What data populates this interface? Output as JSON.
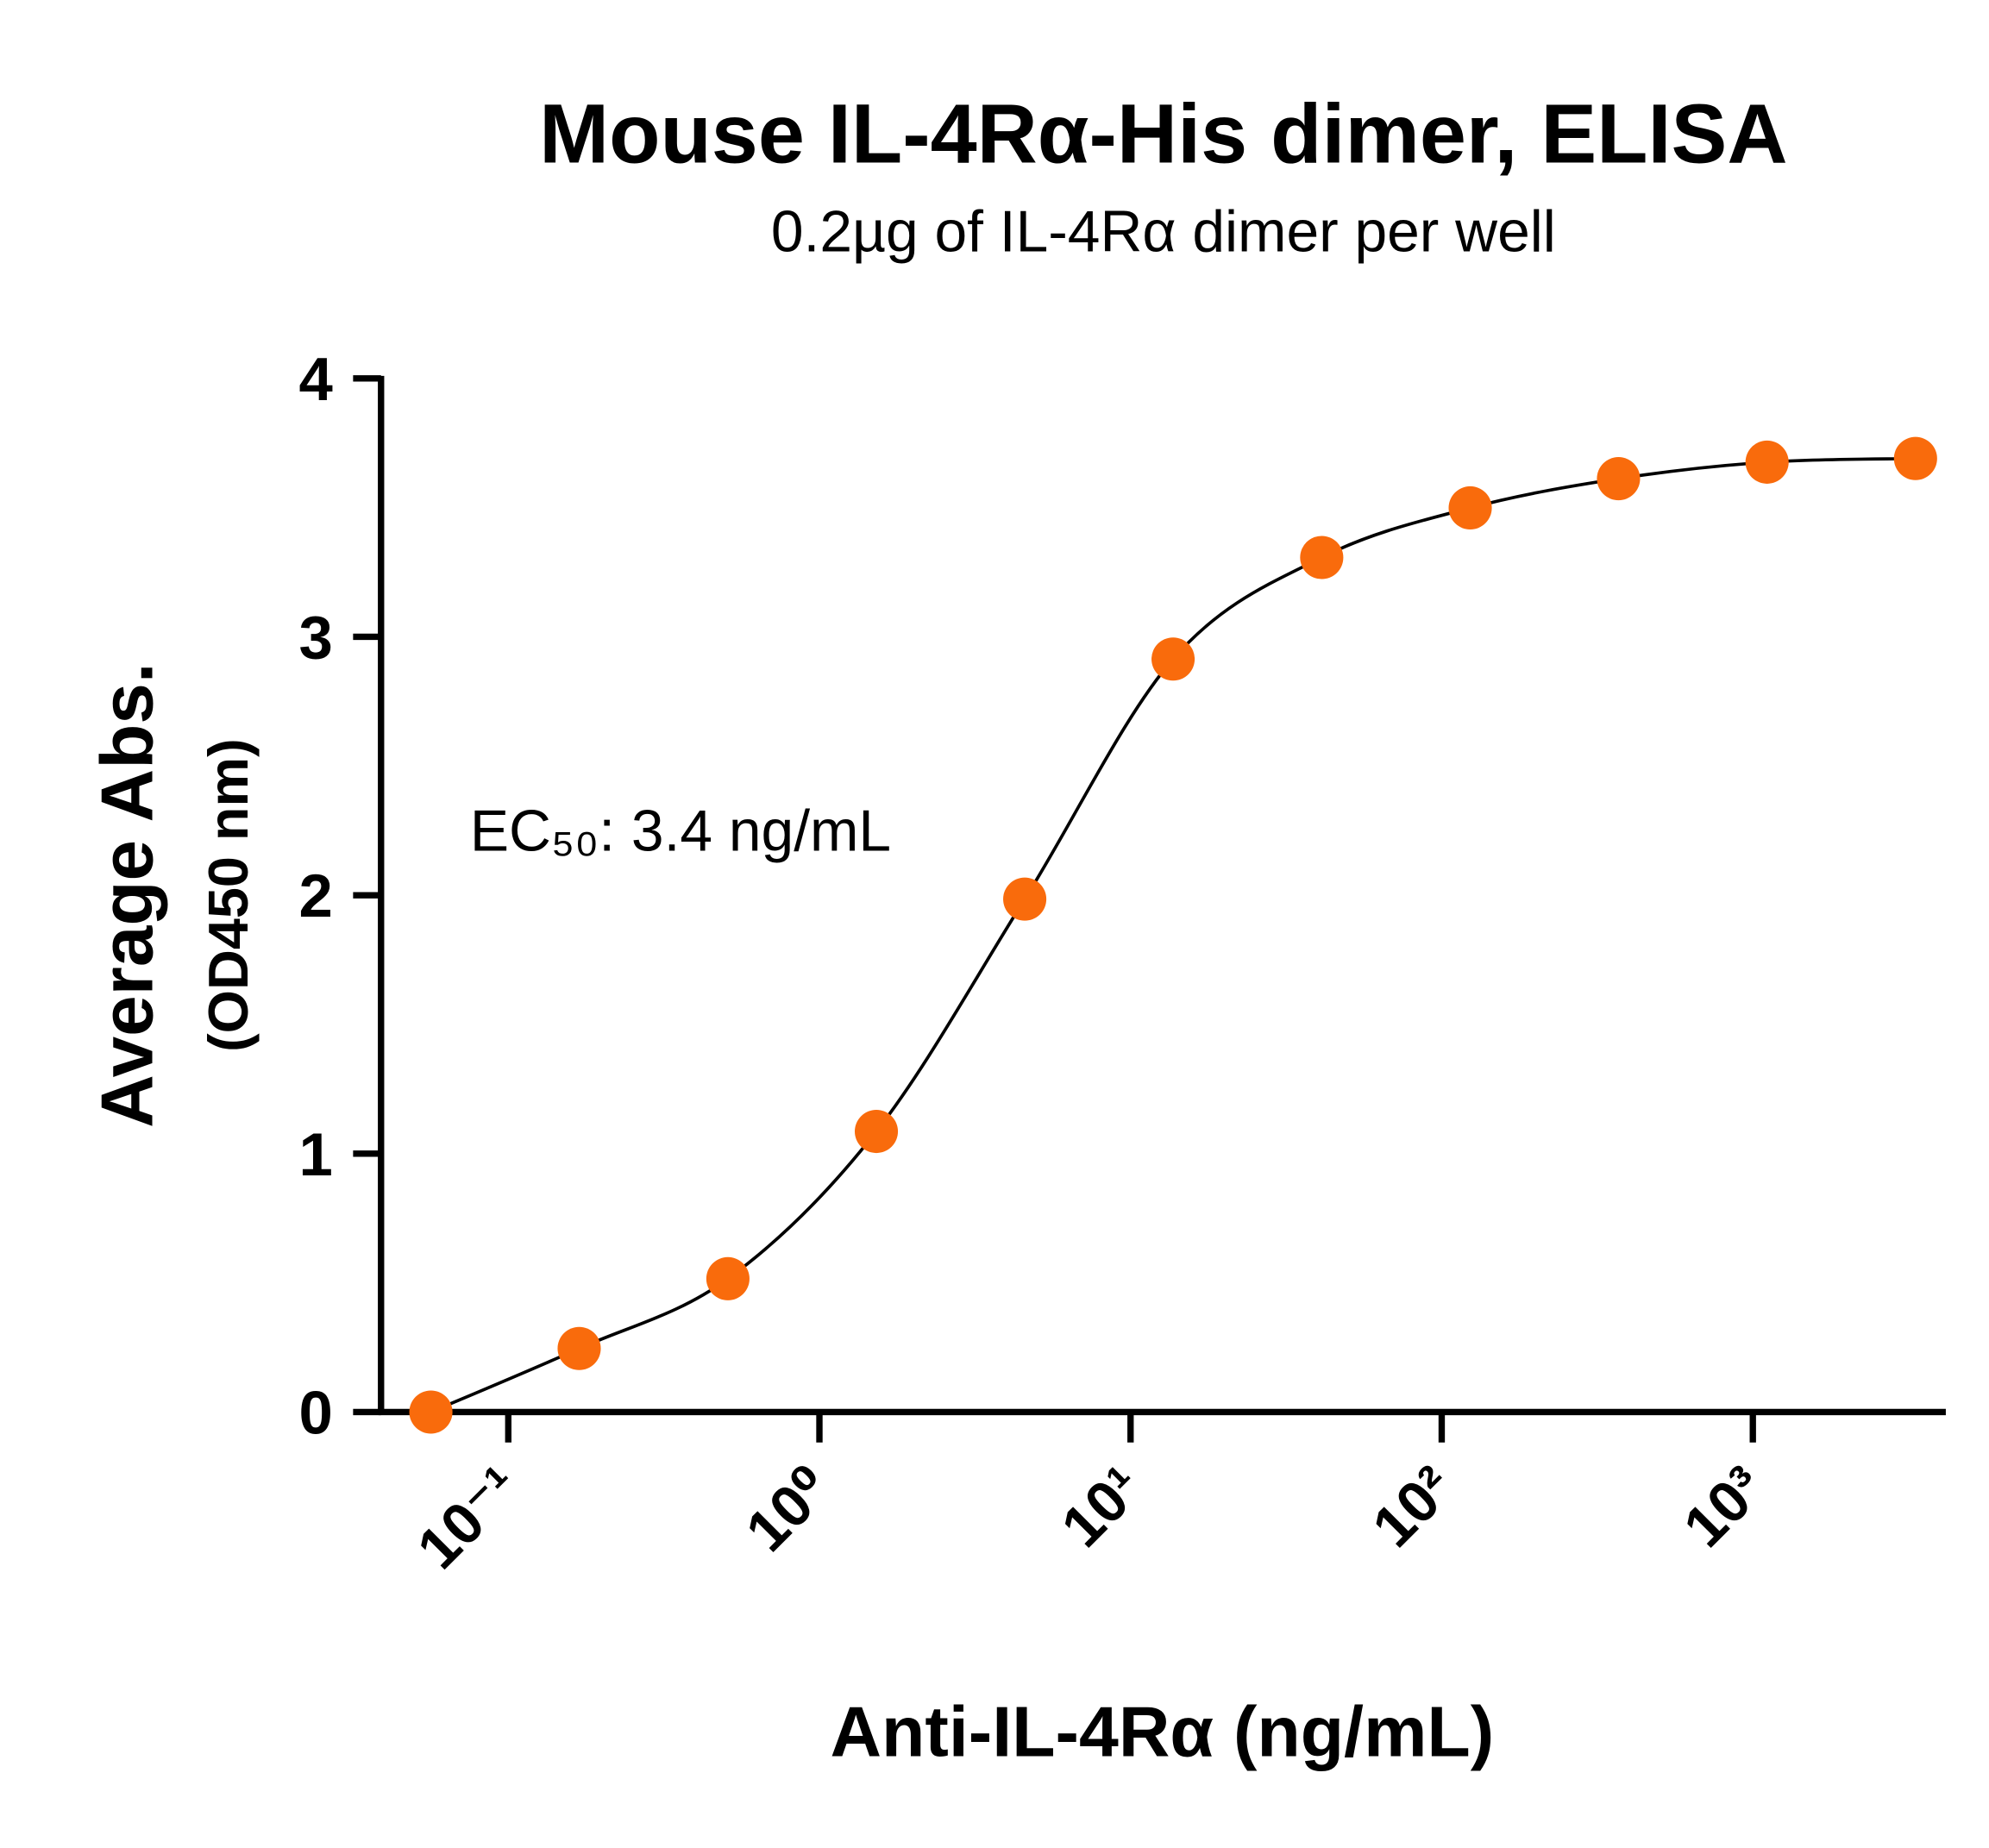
{
  "chart_data": {
    "type": "scatter",
    "title": "Mouse IL-4Rα-His dimer, ELISA",
    "subtitle": "0.2µg of IL-4Rα dimer per well",
    "xlabel": "Anti-IL-4Rα (ng/mL)",
    "ylabel": "Average Abs.",
    "ylabel_sub": "(OD450 nm)",
    "annotation": "EC₅₀: 3.4 ng/mL",
    "xscale": "log",
    "xlim": [
      0.039,
      4093
    ],
    "ylim": [
      0,
      4
    ],
    "xticks": [
      {
        "value": 0.1,
        "label": "10⁻¹"
      },
      {
        "value": 1,
        "label": "10⁰"
      },
      {
        "value": 10,
        "label": "10¹"
      },
      {
        "value": 100,
        "label": "10²"
      },
      {
        "value": 1000,
        "label": "10³"
      }
    ],
    "yticks": [
      0,
      1,
      2,
      3,
      4
    ],
    "grid": false,
    "series": [
      {
        "color": "#f96b0c",
        "x": [
          0.0564,
          0.169,
          0.508,
          1.524,
          4.57,
          13.7,
          41.15,
          123.5,
          370,
          1111,
          3333
        ],
        "values": [
          0,
          0.246,
          0.516,
          1.086,
          1.985,
          2.914,
          3.307,
          3.499,
          3.612,
          3.676,
          3.69
        ]
      }
    ]
  }
}
